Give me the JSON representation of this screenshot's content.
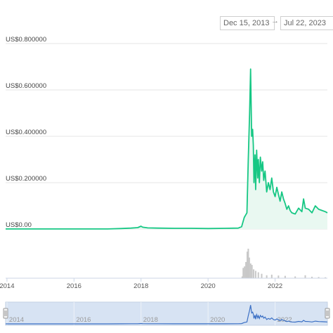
{
  "date_range": {
    "start": "Dec 15, 2013",
    "arrow": "→",
    "end": "Jul 22, 2023"
  },
  "colors": {
    "price_line": "#16c784",
    "price_fill": "#e9f8f1",
    "volume": "#c8c8c8",
    "navigator_line": "#3a6fc4",
    "navigator_window": "#d7e3f3"
  },
  "chart_data": {
    "type": "area",
    "title": "",
    "xlabel": "",
    "ylabel": "",
    "y_tick_labels": [
      "US$0.800000",
      "US$0.600000",
      "US$0.400000",
      "US$0.200000",
      "US$0.00"
    ],
    "y_ticks": [
      0.8,
      0.6,
      0.4,
      0.2,
      0.0
    ],
    "ylim": [
      0,
      0.8
    ],
    "x_tick_labels": [
      "2014",
      "2016",
      "2018",
      "2020",
      "2022"
    ],
    "x_ticks": [
      2014,
      2016,
      2018,
      2020,
      2022
    ],
    "xlim": [
      2013.96,
      2023.56
    ],
    "grid": true,
    "series": [
      {
        "x": [
          2013.96,
          2014.5,
          2015.0,
          2015.5,
          2016.0,
          2016.5,
          2017.0,
          2017.4,
          2017.7,
          2017.9,
          2018.0,
          2018.05,
          2018.2,
          2018.5,
          2019.0,
          2019.5,
          2020.0,
          2020.5,
          2020.9,
          2021.0,
          2021.08,
          2021.12,
          2021.16,
          2021.2,
          2021.24,
          2021.27,
          2021.3,
          2021.33,
          2021.35,
          2021.37,
          2021.4,
          2021.42,
          2021.45,
          2021.48,
          2021.5,
          2021.53,
          2021.56,
          2021.6,
          2021.63,
          2021.66,
          2021.7,
          2021.75,
          2021.8,
          2021.85,
          2021.9,
          2021.95,
          2022.0,
          2022.05,
          2022.1,
          2022.15,
          2022.2,
          2022.25,
          2022.3,
          2022.35,
          2022.4,
          2022.45,
          2022.5,
          2022.6,
          2022.7,
          2022.8,
          2022.85,
          2022.9,
          2023.0,
          2023.1,
          2023.2,
          2023.3,
          2023.4,
          2023.5,
          2023.56
        ],
        "values": [
          0.0002,
          0.0003,
          0.0002,
          0.0002,
          0.0003,
          0.0003,
          0.0004,
          0.002,
          0.004,
          0.006,
          0.012,
          0.008,
          0.005,
          0.004,
          0.003,
          0.003,
          0.002,
          0.003,
          0.004,
          0.01,
          0.05,
          0.06,
          0.07,
          0.3,
          0.5,
          0.69,
          0.4,
          0.43,
          0.36,
          0.2,
          0.32,
          0.17,
          0.34,
          0.22,
          0.3,
          0.2,
          0.31,
          0.25,
          0.29,
          0.21,
          0.25,
          0.16,
          0.2,
          0.17,
          0.22,
          0.16,
          0.14,
          0.18,
          0.15,
          0.12,
          0.16,
          0.13,
          0.11,
          0.085,
          0.1,
          0.08,
          0.07,
          0.065,
          0.09,
          0.075,
          0.13,
          0.09,
          0.085,
          0.07,
          0.1,
          0.085,
          0.08,
          0.075,
          0.07
        ]
      }
    ],
    "volume": {
      "x": [
        2021.02,
        2021.05,
        2021.09,
        2021.13,
        2021.17,
        2021.2,
        2021.23,
        2021.27,
        2021.31,
        2021.36,
        2021.42,
        2021.5,
        2021.6,
        2021.75,
        2021.9,
        2022.1,
        2022.3,
        2022.6,
        2022.9,
        2023.1,
        2023.3,
        2023.5
      ],
      "values": [
        0.06,
        0.35,
        0.4,
        0.55,
        0.9,
        1.0,
        0.7,
        0.5,
        0.45,
        0.3,
        0.25,
        0.2,
        0.15,
        0.1,
        0.12,
        0.09,
        0.08,
        0.06,
        0.1,
        0.05,
        0.04,
        0.03
      ]
    },
    "navigator": {
      "x_tick_labels": [
        "2014",
        "2016",
        "2018",
        "2020",
        "2022"
      ]
    }
  }
}
